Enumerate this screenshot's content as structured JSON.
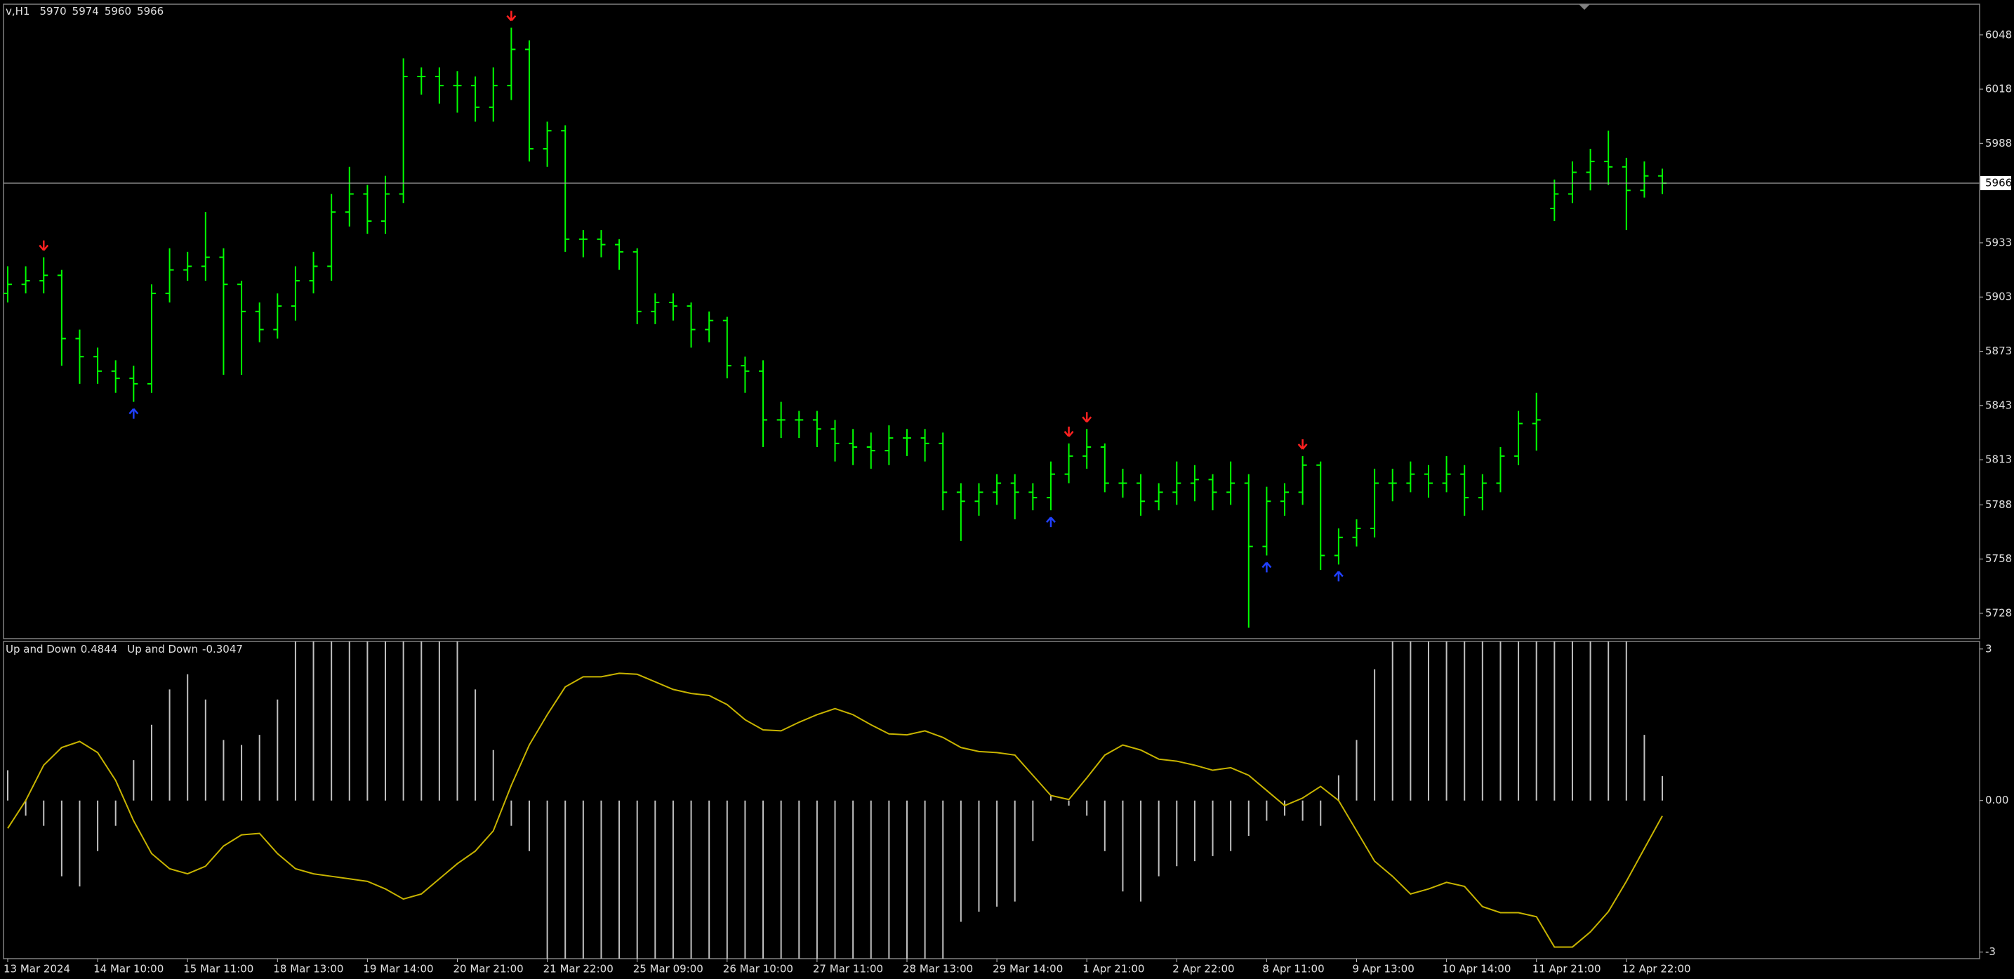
{
  "chart_data": [
    {
      "type": "ohlc",
      "symbol": "v,H1",
      "color": "#00ff00",
      "current_price_line": true,
      "categories": [
        "13 Mar 2024",
        null,
        null,
        null,
        null,
        "14 Mar 10:00",
        null,
        null,
        null,
        null,
        "15 Mar 11:00",
        null,
        null,
        null,
        null,
        "18 Mar 13:00",
        null,
        null,
        null,
        null,
        "19 Mar 14:00",
        null,
        null,
        null,
        null,
        "20 Mar 21:00",
        null,
        null,
        null,
        null,
        "21 Mar 22:00",
        null,
        null,
        null,
        null,
        "25 Mar 09:00",
        null,
        null,
        null,
        null,
        "26 Mar 10:00",
        null,
        null,
        null,
        null,
        "27 Mar 11:00",
        null,
        null,
        null,
        null,
        "28 Mar 13:00",
        null,
        null,
        null,
        null,
        "29 Mar 14:00",
        null,
        null,
        null,
        null,
        "1 Apr 21:00",
        null,
        null,
        null,
        null,
        "2 Apr 22:00",
        null,
        null,
        null,
        null,
        "8 Apr 11:00",
        null,
        null,
        null,
        null,
        "9 Apr 13:00",
        null,
        null,
        null,
        null,
        "10 Apr 14:00",
        null,
        null,
        null,
        null,
        "11 Apr 21:00",
        null,
        null,
        null,
        null,
        "12 Apr 22:00",
        null,
        null
      ],
      "open": [
        5905,
        5910,
        5912,
        5915,
        5880,
        5870,
        5862,
        5858,
        5855,
        5905,
        5918,
        5920,
        5925,
        5910,
        5895,
        5885,
        5898,
        5912,
        5920,
        5950,
        5960,
        5945,
        5960,
        6025,
        6025,
        6020,
        6020,
        6008,
        6020,
        6040,
        5985,
        5995,
        5935,
        5935,
        5932,
        5928,
        5895,
        5900,
        5898,
        5885,
        5890,
        5865,
        5862,
        5835,
        5835,
        5835,
        5830,
        5822,
        5820,
        5818,
        5825,
        5825,
        5822,
        5795,
        5790,
        5795,
        5800,
        5795,
        5792,
        5805,
        5815,
        5820,
        5800,
        5800,
        5790,
        5795,
        5800,
        5802,
        5795,
        5800,
        5765,
        5790,
        5795,
        5810,
        5760,
        5770,
        5775,
        5800,
        5800,
        5805,
        5800,
        5805,
        5792,
        5800,
        5815,
        5833,
        5952,
        5960,
        5972,
        5978,
        5975,
        5962,
        5970
      ],
      "high": [
        5920,
        5920,
        5925,
        5918,
        5885,
        5875,
        5868,
        5865,
        5910,
        5930,
        5928,
        5950,
        5930,
        5912,
        5900,
        5905,
        5920,
        5928,
        5960,
        5975,
        5965,
        5970,
        6035,
        6030,
        6030,
        6028,
        6025,
        6030,
        6052,
        6045,
        6000,
        5998,
        5940,
        5940,
        5935,
        5930,
        5905,
        5905,
        5900,
        5895,
        5892,
        5870,
        5868,
        5845,
        5840,
        5840,
        5835,
        5830,
        5828,
        5832,
        5830,
        5830,
        5828,
        5800,
        5800,
        5805,
        5805,
        5800,
        5812,
        5822,
        5830,
        5822,
        5808,
        5805,
        5800,
        5812,
        5810,
        5805,
        5812,
        5805,
        5798,
        5800,
        5815,
        5812,
        5775,
        5780,
        5808,
        5808,
        5812,
        5810,
        5815,
        5810,
        5805,
        5820,
        5840,
        5850,
        5968,
        5978,
        5985,
        5995,
        5980,
        5978,
        5974
      ],
      "low": [
        5900,
        5905,
        5905,
        5865,
        5855,
        5855,
        5850,
        5845,
        5850,
        5900,
        5912,
        5912,
        5860,
        5860,
        5878,
        5880,
        5890,
        5905,
        5912,
        5942,
        5938,
        5938,
        5955,
        6015,
        6010,
        6005,
        6000,
        6000,
        6012,
        5978,
        5975,
        5928,
        5925,
        5925,
        5918,
        5888,
        5888,
        5890,
        5875,
        5878,
        5858,
        5850,
        5820,
        5825,
        5825,
        5820,
        5812,
        5810,
        5808,
        5810,
        5815,
        5812,
        5785,
        5768,
        5782,
        5788,
        5780,
        5785,
        5785,
        5800,
        5808,
        5795,
        5792,
        5782,
        5785,
        5788,
        5790,
        5785,
        5788,
        5720,
        5760,
        5782,
        5788,
        5752,
        5755,
        5765,
        5770,
        5790,
        5795,
        5792,
        5795,
        5782,
        5785,
        5795,
        5810,
        5818,
        5945,
        5955,
        5962,
        5965,
        5940,
        5958,
        5960
      ],
      "close": [
        5910,
        5912,
        5915,
        5880,
        5870,
        5862,
        5858,
        5855,
        5905,
        5918,
        5920,
        5925,
        5910,
        5895,
        5885,
        5898,
        5912,
        5920,
        5950,
        5960,
        5945,
        5960,
        6025,
        6025,
        6020,
        6020,
        6008,
        6020,
        6040,
        5985,
        5995,
        5935,
        5935,
        5932,
        5928,
        5895,
        5900,
        5898,
        5885,
        5890,
        5865,
        5862,
        5835,
        5835,
        5835,
        5830,
        5822,
        5820,
        5818,
        5825,
        5825,
        5822,
        5795,
        5790,
        5795,
        5800,
        5795,
        5792,
        5805,
        5815,
        5820,
        5800,
        5800,
        5790,
        5795,
        5800,
        5802,
        5795,
        5800,
        5765,
        5790,
        5795,
        5810,
        5760,
        5770,
        5775,
        5800,
        5800,
        5805,
        5800,
        5805,
        5792,
        5800,
        5815,
        5833,
        5835,
        5960,
        5972,
        5978,
        5975,
        5962,
        5970,
        5966
      ],
      "sell_signals": [
        2,
        28,
        59,
        60,
        72
      ],
      "buy_signals": [
        7,
        58,
        70,
        74
      ],
      "ylim": [
        5714,
        6065
      ],
      "yticks": [
        5728,
        5758,
        5788,
        5813,
        5843,
        5873,
        5903,
        5933,
        5988,
        6018,
        6048
      ]
    },
    {
      "type": "indicator",
      "series": [
        {
          "name": "Up and Down",
          "kind": "histogram",
          "color": "#c0c0c0",
          "values": [
            0.6,
            -0.3,
            -0.5,
            -1.5,
            -1.7,
            -1.0,
            -0.5,
            0.8,
            1.5,
            2.2,
            2.5,
            2.0,
            1.2,
            1.1,
            1.3,
            2.0,
            3.2,
            3.2,
            3.2,
            3.2,
            3.2,
            3.2,
            3.2,
            3.2,
            3.2,
            3.2,
            2.2,
            1.0,
            -0.5,
            -1.0,
            -3.2,
            -3.2,
            -3.2,
            -3.2,
            -3.2,
            -3.2,
            -3.2,
            -3.2,
            -3.2,
            -3.2,
            -3.2,
            -3.2,
            -3.2,
            -3.2,
            -3.2,
            -3.2,
            -3.2,
            -3.2,
            -3.2,
            -3.2,
            -3.2,
            -3.2,
            -3.2,
            -2.4,
            -2.2,
            -2.1,
            -2.0,
            -0.8,
            0.1,
            -0.1,
            -0.3,
            -1.0,
            -1.8,
            -2.0,
            -1.5,
            -1.3,
            -1.2,
            -1.1,
            -1.0,
            -0.7,
            -0.4,
            -0.3,
            -0.4,
            -0.5,
            0.5,
            1.2,
            2.6,
            3.2,
            3.2,
            3.2,
            3.2,
            3.2,
            3.2,
            3.2,
            3.2,
            3.2,
            3.2,
            3.2,
            3.2,
            3.2,
            3.2,
            1.3,
            0.4844
          ]
        },
        {
          "name": "Up and Down",
          "kind": "line",
          "color": "#c8b400",
          "values": [
            -0.55,
            0.0,
            0.7,
            1.05,
            1.17,
            0.95,
            0.4,
            -0.4,
            -1.05,
            -1.35,
            -1.45,
            -1.3,
            -0.9,
            -0.68,
            -0.65,
            -1.05,
            -1.35,
            -1.45,
            -1.5,
            -1.55,
            -1.6,
            -1.75,
            -1.95,
            -1.85,
            -1.55,
            -1.25,
            -1.0,
            -0.6,
            0.3,
            1.1,
            1.7,
            2.25,
            2.45,
            2.45,
            2.52,
            2.5,
            2.35,
            2.2,
            2.12,
            2.08,
            1.9,
            1.6,
            1.4,
            1.38,
            1.55,
            1.7,
            1.82,
            1.7,
            1.5,
            1.32,
            1.3,
            1.38,
            1.25,
            1.05,
            0.97,
            0.95,
            0.9,
            0.5,
            0.1,
            0.02,
            0.45,
            0.9,
            1.1,
            1.0,
            0.82,
            0.78,
            0.7,
            0.6,
            0.65,
            0.5,
            0.2,
            -0.1,
            0.05,
            0.28,
            0.0,
            -0.6,
            -1.2,
            -1.5,
            -1.85,
            -1.75,
            -1.62,
            -1.7,
            -2.1,
            -2.22,
            -2.22,
            -2.3,
            -2.9,
            -2.9,
            -2.6,
            -2.2,
            -1.6,
            -0.95,
            -0.3047
          ]
        }
      ],
      "ylim": [
        -3.13,
        3.15
      ],
      "yticks": [
        3,
        {
          "value": 0,
          "label": "0.00"
        },
        -3
      ]
    }
  ]
}
